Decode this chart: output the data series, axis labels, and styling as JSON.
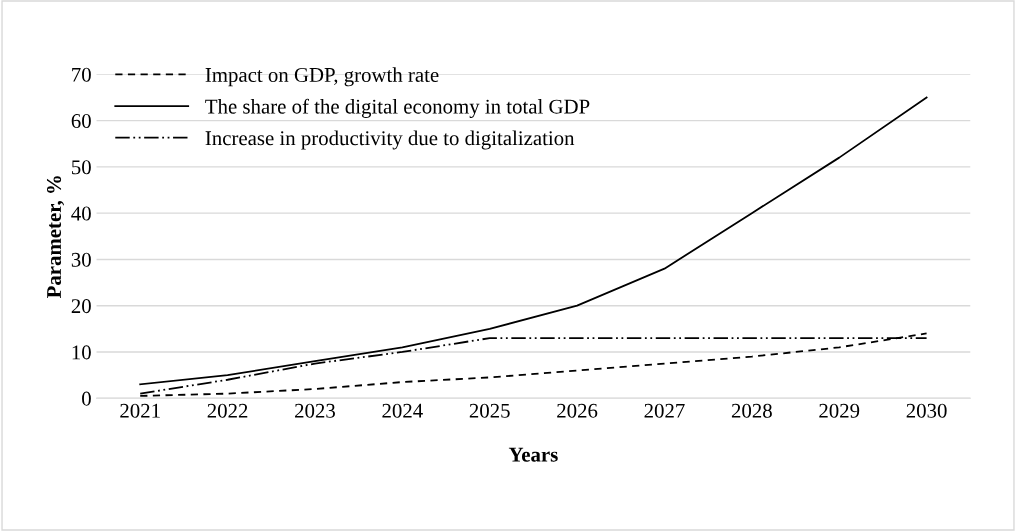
{
  "chart_data": {
    "type": "line",
    "xlabel": "Years",
    "ylabel": "Parameter, %",
    "categories": [
      "2021",
      "2022",
      "2023",
      "2024",
      "2025",
      "2026",
      "2027",
      "2028",
      "2029",
      "2030"
    ],
    "series": [
      {
        "name": "Impact on GDP, growth rate",
        "color": "#000000",
        "line_style": "dashed",
        "values": [
          0.5,
          1,
          2,
          3.5,
          4.5,
          6,
          7.5,
          9,
          11,
          14
        ]
      },
      {
        "name": "The share of the digital economy in total GDP",
        "color": "#000000",
        "line_style": "solid",
        "values": [
          3,
          5,
          8,
          11,
          15,
          20,
          28,
          40,
          52,
          65
        ]
      },
      {
        "name": "Increase in productivity due to digitalization",
        "color": "#000000",
        "line_style": "dashdotdot",
        "values": [
          1,
          4,
          7.5,
          10,
          13,
          13,
          13,
          13,
          13,
          13
        ]
      }
    ],
    "ylim": [
      0,
      70
    ],
    "yticks": [
      0,
      10,
      20,
      30,
      40,
      50,
      60,
      70
    ],
    "grid": "y",
    "legend": "top left",
    "marker": "none"
  }
}
